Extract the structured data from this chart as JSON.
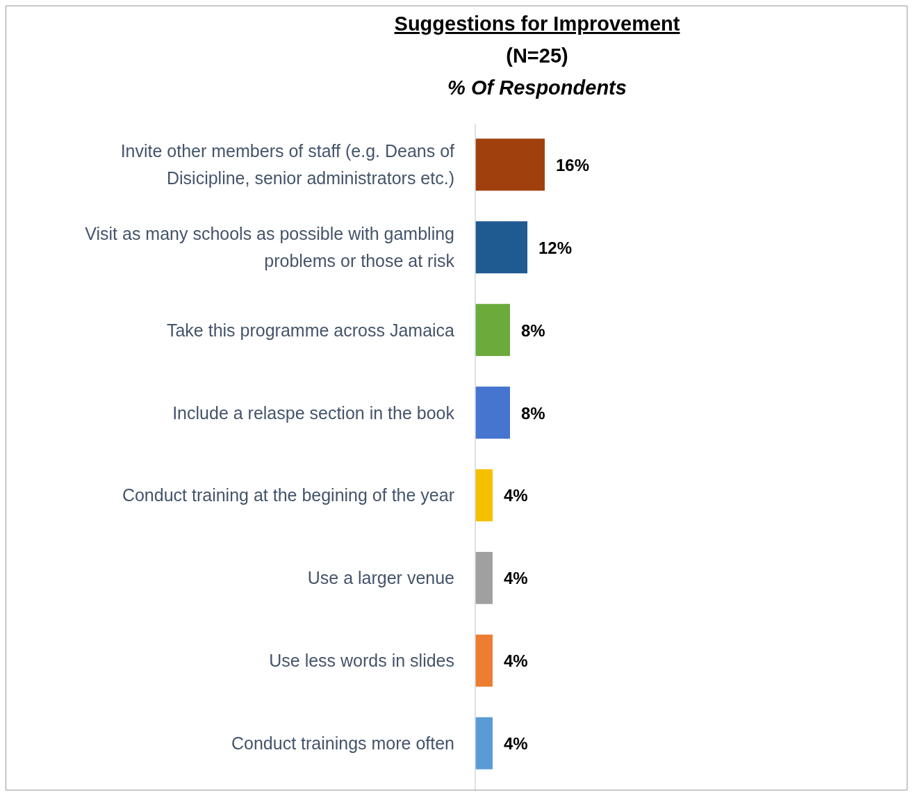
{
  "chart_data": {
    "type": "bar",
    "orientation": "horizontal",
    "title": "Suggestions for Improvement",
    "subtitle": "(N=25)",
    "annotations": [
      "% Of Respondents"
    ],
    "categories": [
      "Invite other members of staff (e.g. Deans of Disicipline, senior administrators etc.)",
      "Visit as many schools as possible with gambling problems or those at risk",
      "Take this programme across Jamaica",
      "Include a relaspe section in the book",
      "Conduct training at the begining of the year",
      "Use a larger venue",
      "Use less words in slides",
      "Conduct trainings more often"
    ],
    "values": [
      16,
      12,
      8,
      8,
      4,
      4,
      4,
      4
    ],
    "colors": [
      "#a0410d",
      "#1f5a91",
      "#6aab3c",
      "#4575cf",
      "#f5c000",
      "#a0a0a0",
      "#ed7d31",
      "#5b9bd5"
    ],
    "value_labels": [
      "16%",
      "12%",
      "8%",
      "8%",
      "4%",
      "4%",
      "4%",
      "4%"
    ]
  }
}
